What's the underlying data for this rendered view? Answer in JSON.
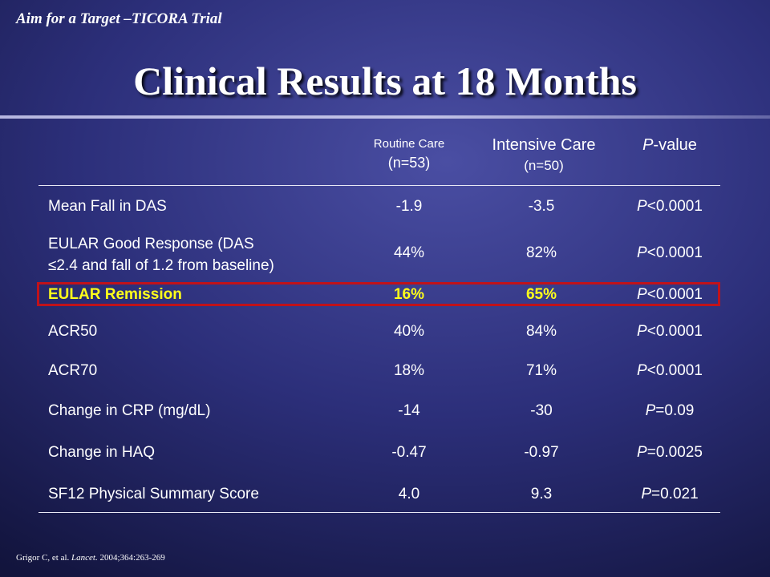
{
  "slide": {
    "top_label": "Aim for a Target –TICORA Trial",
    "title": "Clinical Results at 18 Months",
    "citation_authors": "Grigor C, et al.",
    "citation_journal": "Lancet.",
    "citation_ref": "2004;364:263-269"
  },
  "table": {
    "headers": {
      "routine_line1": "Routine Care",
      "routine_line2": "(n=53)",
      "intensive_line1": "Intensive Care",
      "intensive_line2": "(n=50)",
      "pvalue_italic": "P",
      "pvalue_rest": "-value"
    },
    "rows": [
      {
        "label": "Mean Fall in DAS",
        "routine": "-1.9",
        "intensive": "-3.5",
        "p_symbol": "P",
        "p_rest": "<0.0001"
      },
      {
        "label_line1": "EULAR Good Response (DAS",
        "label_line2": "≤2.4 and fall of 1.2 from baseline)",
        "routine": "44%",
        "intensive": "82%",
        "p_symbol": "P",
        "p_rest": "<0.0001"
      },
      {
        "label": "EULAR Remission",
        "routine": "16%",
        "intensive": "65%",
        "p_symbol": "P",
        "p_rest": "<0.0001",
        "highlighted": true
      },
      {
        "label": "ACR50",
        "routine": "40%",
        "intensive": "84%",
        "p_symbol": "P",
        "p_rest": "<0.0001"
      },
      {
        "label": "ACR70",
        "routine": "18%",
        "intensive": "71%",
        "p_symbol": "P",
        "p_rest": "<0.0001"
      },
      {
        "label": "Change in CRP (mg/dL)",
        "routine": "-14",
        "intensive": "-30",
        "p_symbol": "P",
        "p_rest": "=0.09"
      },
      {
        "label": "Change in HAQ",
        "routine": "-0.47",
        "intensive": "-0.97",
        "p_symbol": "P",
        "p_rest": "=0.0025"
      },
      {
        "label": "SF12 Physical Summary Score",
        "routine": "4.0",
        "intensive": "9.3",
        "p_symbol": "P",
        "p_rest": "=0.021"
      }
    ]
  },
  "colors": {
    "highlight_text": "#ffff1a",
    "highlight_border": "#c0121a",
    "background": "#2c2f7a"
  }
}
